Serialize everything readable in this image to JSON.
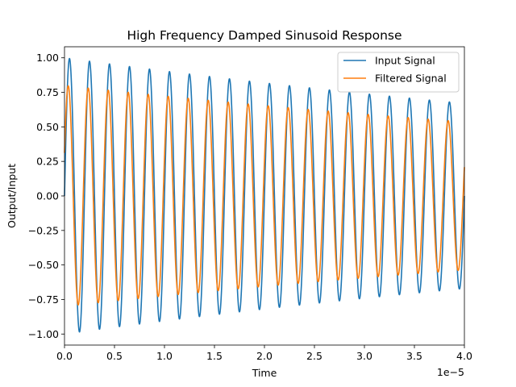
{
  "chart_data": {
    "type": "line",
    "title": "High Frequency Damped Sinusoid Response",
    "xlabel": "Time",
    "ylabel": "Output/Input",
    "x_offset_label": "1e−5",
    "xlim": [
      0,
      4e-05
    ],
    "ylim": [
      -1.08,
      1.08
    ],
    "x_ticks": [
      0,
      5e-06,
      1e-05,
      1.5e-05,
      2e-05,
      2.5e-05,
      3e-05,
      3.5e-05,
      4e-05
    ],
    "x_tick_labels": [
      "0.0",
      "0.5",
      "1.0",
      "1.5",
      "2.0",
      "2.5",
      "3.0",
      "3.5",
      "4.0"
    ],
    "y_ticks": [
      -1.0,
      -0.75,
      -0.5,
      -0.25,
      0.0,
      0.25,
      0.5,
      0.75,
      1.0
    ],
    "y_tick_labels": [
      "−1.00",
      "−0.75",
      "−0.50",
      "−0.25",
      "0.00",
      "0.25",
      "0.50",
      "0.75",
      "1.00"
    ],
    "grid": false,
    "legend_position": "top-right",
    "series": [
      {
        "name": "Input Signal",
        "color": "#1f77b4",
        "function": "exp(-decay_rate * t) * sin(2*pi*frequency_hz*t)",
        "amplitude": 1.0,
        "frequency_hz": 500000,
        "decay_rate": 10000,
        "phase_rad": 0
      },
      {
        "name": "Filtered Signal",
        "color": "#ff7f0e",
        "function": "amplitude * exp(-decay_rate * t) * sin(2*pi*frequency_hz*t + phase_rad)",
        "amplitude": 0.8,
        "frequency_hz": 500000,
        "decay_rate": 10000,
        "phase_rad": 0.4
      }
    ]
  }
}
